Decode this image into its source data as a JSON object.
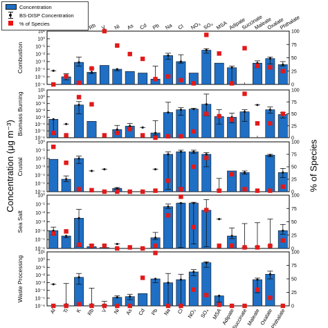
{
  "legend": {
    "concentration": "Concentration",
    "bs_disp": "BS-DISP Concentration",
    "pct_species": "% of Species"
  },
  "axis": {
    "left_label": "Concentration (μg m⁻³)",
    "right_label": "% of Species"
  },
  "colors": {
    "bar": "#1f6fc5",
    "marker": "#e11a1a",
    "error": "#111111"
  },
  "chart_data": {
    "type": "bar",
    "y_scale": "log",
    "y_secondary_range": [
      0,
      100
    ],
    "y_secondary_ticks": [
      "0",
      "25",
      "50",
      "75",
      "100"
    ],
    "categories": [
      "Al",
      "Ti",
      "K",
      "Rb",
      "V",
      "Ni",
      "As",
      "Cd",
      "Pb",
      "Na",
      "Cl",
      "NO₃",
      "SO₄",
      "MSA",
      "Adipate",
      "Succinate",
      "Maleate",
      "Oxalate",
      "Phthalate"
    ],
    "panels": [
      {
        "name": "Combustion",
        "ylim_exp": [
          -6,
          1
        ],
        "tick_labels": [
          "10⁻⁶",
          "10⁻⁵",
          "10⁻⁴",
          "10⁻³",
          "10⁻²",
          "10⁻¹",
          "10⁰",
          "10¹"
        ],
        "bars": [
          null,
          -5.0,
          -3.1,
          -4.4,
          -3.5,
          -4.0,
          -4.3,
          -4.5,
          -5.3,
          -2.2,
          -3.0,
          -4.5,
          -1.5,
          -3.2,
          -3.8,
          null,
          -3.2,
          -2.6,
          -3.4
        ],
        "err_low": [
          null,
          -5.4,
          -3.6,
          -4.6,
          null,
          -4.2,
          null,
          null,
          -5.4,
          -2.7,
          -3.2,
          null,
          -1.9,
          null,
          -6.0,
          null,
          -3.8,
          -3.3,
          -3.6
        ],
        "err_high": [
          -4.2,
          -4.6,
          -2.4,
          -3.9,
          null,
          null,
          null,
          null,
          -3.6,
          -1.9,
          -2.1,
          null,
          -1.3,
          null,
          -3.6,
          null,
          -2.9,
          -2.4,
          -3.0
        ],
        "pct": [
          0,
          15,
          3,
          30,
          100,
          73,
          57,
          48,
          10,
          15,
          8,
          2,
          93,
          58,
          2,
          68,
          35,
          32,
          25
        ]
      },
      {
        "name": "Biomass Burning",
        "ylim_exp": [
          -6,
          1
        ],
        "tick_labels": [
          "10⁻⁶",
          "10⁻⁵",
          "10⁻⁴",
          "10⁻³",
          "10⁻²",
          "10⁻¹",
          "10⁰",
          "10¹"
        ],
        "bars": [
          -3.3,
          null,
          -1.2,
          -3.6,
          null,
          -4.8,
          -4.3,
          null,
          -5.3,
          -2.3,
          -1.9,
          -1.8,
          -1.1,
          -2.9,
          -3.0,
          -2.2,
          null,
          -1.9,
          -2.6
        ],
        "err_low": [
          -5.5,
          null,
          -2.5,
          null,
          null,
          -5.2,
          -4.6,
          null,
          -5.6,
          null,
          -2.7,
          null,
          -2.8,
          -4.0,
          -3.8,
          -3.6,
          null,
          -2.4,
          -3.1
        ],
        "err_high": [
          null,
          -4.0,
          -0.7,
          null,
          null,
          -4.2,
          -3.9,
          -4.5,
          -3.5,
          -0.8,
          -1.6,
          -1.7,
          0.4,
          -1.9,
          -2.4,
          -1.9,
          -1.2,
          -1.5,
          -2.3
        ],
        "pct": [
          10,
          5,
          85,
          70,
          5,
          10,
          18,
          5,
          0,
          3,
          3,
          13,
          50,
          45,
          38,
          92,
          30,
          30,
          50
        ]
      },
      {
        "name": "Crustal",
        "ylim_exp": [
          -6,
          0
        ],
        "tick_labels": [
          "10⁻⁶",
          "10⁻⁵",
          "10⁻⁴",
          "10⁻³",
          "10⁻²",
          "10⁻¹",
          "10⁰"
        ],
        "bars": [
          -2.1,
          -4.5,
          -2.0,
          null,
          null,
          -5.6,
          null,
          null,
          null,
          -1.5,
          -1.2,
          -1.2,
          -1.5,
          null,
          -3.5,
          -3.7,
          null,
          -1.6,
          -3.7
        ],
        "err_low": [
          null,
          -4.8,
          -2.6,
          null,
          null,
          -5.7,
          null,
          null,
          null,
          -5.7,
          -5.5,
          -1.4,
          -3.0,
          -5.8,
          null,
          -3.9,
          null,
          -1.8,
          -4.3
        ],
        "err_high": [
          null,
          -4.1,
          -1.7,
          -3.5,
          -3.3,
          -5.5,
          null,
          null,
          -3.3,
          -1.2,
          -1.0,
          -1.0,
          -1.3,
          -4.4,
          null,
          -3.5,
          null,
          -1.5,
          -3.2
        ],
        "pct": [
          90,
          58,
          5,
          3,
          0,
          0,
          0,
          0,
          2,
          22,
          5,
          50,
          68,
          2,
          35,
          5,
          2,
          2,
          10
        ]
      },
      {
        "name": "Sea Salt",
        "ylim_exp": [
          -6,
          0
        ],
        "tick_labels": [
          "10⁻⁶",
          "10⁻⁵",
          "10⁻⁴",
          "10⁻³",
          "10⁻²",
          "10⁻¹",
          "10⁰"
        ],
        "bars": [
          -4.0,
          -4.6,
          -2.6,
          -5.8,
          -5.9,
          null,
          null,
          null,
          -4.8,
          -1.3,
          -0.9,
          -0.9,
          -1.7,
          null,
          -4.6,
          null,
          null,
          null,
          -4.0
        ],
        "err_low": [
          -4.5,
          -4.8,
          -5.8,
          -6.0,
          -6.0,
          null,
          null,
          null,
          -5.0,
          -1.5,
          -5.9,
          -5.5,
          -5.8,
          null,
          -4.9,
          -5.9,
          -5.8,
          -5.7,
          -4.4
        ],
        "err_high": [
          -3.6,
          null,
          -1.6,
          -5.6,
          null,
          -5.5,
          null,
          null,
          -4.2,
          -1.0,
          -0.9,
          -0.8,
          -0.5,
          -2.7,
          -3.7,
          -3.2,
          -3.1,
          -2.7,
          -3.3
        ],
        "pct": [
          28,
          32,
          7,
          5,
          5,
          0,
          2,
          0,
          5,
          62,
          97,
          40,
          72,
          5,
          5,
          2,
          2,
          5,
          15
        ]
      },
      {
        "name": "Waste Processing",
        "ylim_exp": [
          -6,
          1
        ],
        "tick_labels": [
          "10⁻⁶",
          "10⁻⁵",
          "10⁻⁴",
          "10⁻³",
          "10⁻²",
          "10⁻¹",
          "10⁰",
          "10¹"
        ],
        "bars": [
          null,
          null,
          -2.3,
          null,
          null,
          -4.9,
          -4.8,
          -4.4,
          -2.5,
          -3.0,
          -2.6,
          -1.6,
          -0.4,
          -4.7,
          null,
          null,
          -2.6,
          -1.9,
          null
        ],
        "err_low": [
          null,
          -5.8,
          -3.2,
          -5.8,
          -5.9,
          -4.9,
          -5.2,
          null,
          -3.0,
          -6.0,
          -6.0,
          -2.1,
          -1.0,
          -5.5,
          null,
          null,
          -4.3,
          -2.5,
          null
        ],
        "err_high": [
          -3.2,
          -3.1,
          -1.8,
          -3.7,
          -5.4,
          -4.7,
          -4.5,
          null,
          null,
          -1.8,
          -1.9,
          -1.3,
          -0.3,
          null,
          null,
          null,
          -2.4,
          -1.5,
          null
        ],
        "pct": [
          0,
          0,
          3,
          0,
          0,
          0,
          0,
          52,
          98,
          0,
          0,
          30,
          20,
          2,
          0,
          0,
          30,
          15,
          0
        ]
      }
    ]
  }
}
